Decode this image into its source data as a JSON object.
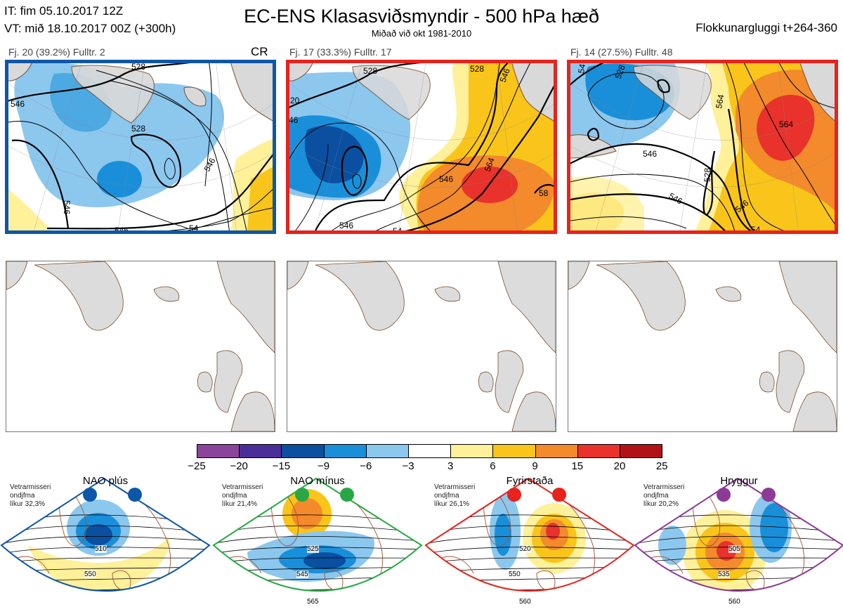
{
  "header": {
    "it_line": "IT: fim 05.10.2017 12Z",
    "vt_line": "VT: mið 18.10.2017 00Z  (+300h)",
    "title": "EC-ENS Klasasviðsmyndir - 500 hPa hæð",
    "subtitle": "Miðað við okt 1981-2010",
    "window": "Flokkunargluggi t+264-360"
  },
  "colors": {
    "cr_border": "#0d57a8",
    "warm_border": "#e8221c",
    "land": "#d9d9d9",
    "coast": "#7a4b2a"
  },
  "panels": [
    {
      "label": "Fj. 20 (39.2%)   Fulltr. 2",
      "tag": "CR",
      "contours": [
        "528",
        "546",
        "528",
        "546",
        "546",
        "546",
        "546",
        "546",
        "54"
      ]
    },
    {
      "label": "Fj. 17 (33.3%)   Fulltr. 17",
      "tag": "",
      "contours": [
        "528",
        "528",
        "546",
        "20",
        "46",
        "546",
        "564",
        "546",
        "54",
        "58"
      ]
    },
    {
      "label": "Fj. 14 (27.5%)   Fulltr. 48",
      "tag": "",
      "contours": [
        "54",
        "528",
        "546",
        "564",
        "546",
        "528",
        "564",
        "546",
        "54"
      ]
    }
  ],
  "colorbar": {
    "ticks": [
      "−25",
      "−20",
      "−15",
      "−9",
      "−6",
      "−3",
      "3",
      "6",
      "9",
      "15",
      "20",
      "25"
    ],
    "colors": [
      "#8b449c",
      "#4b2f98",
      "#0a4fa0",
      "#1a8fd9",
      "#8cc7ee",
      "#ffffff",
      "#fff09a",
      "#f9c51a",
      "#f38a2b",
      "#e8322b",
      "#b01218"
    ]
  },
  "regimes": [
    {
      "name": "NAO plús",
      "info": [
        "Vetrarmisseri",
        "ondjfma",
        "líkur 32,3%"
      ],
      "color": "#0d57a8",
      "labels": [
        "510",
        "550"
      ]
    },
    {
      "name": "NAO mínus",
      "info": [
        "Vetrarmisseri",
        "ondjfma",
        "líkur 21,4%"
      ],
      "color": "#27a844",
      "labels": [
        "525",
        "545",
        "565"
      ]
    },
    {
      "name": "Fyrirstaða",
      "info": [
        "Vetrarmisseri",
        "ondjfma",
        "líkur 26,1%"
      ],
      "color": "#e8221c",
      "labels": [
        "520",
        "550",
        "560"
      ]
    },
    {
      "name": "Hryggur",
      "info": [
        "Vetrarmisseri",
        "ondjfma",
        "líkur 20,2%"
      ],
      "color": "#8d3a96",
      "labels": [
        "505",
        "535",
        "560"
      ]
    }
  ]
}
